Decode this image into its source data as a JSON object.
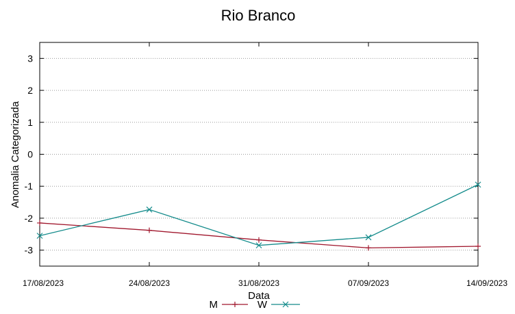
{
  "chart_data": {
    "type": "line",
    "title": "Rio Branco",
    "xlabel": "Data",
    "ylabel": "Anomalia Categorizada",
    "categories": [
      "17/08/2023",
      "24/08/2023",
      "31/08/2023",
      "07/09/2023",
      "14/09/2023"
    ],
    "yticks": [
      "3",
      "2",
      "1",
      "0",
      "-1",
      "-2",
      "-3"
    ],
    "ylim": [
      -3.5,
      3.5
    ],
    "grid": true,
    "legend_position": "bottom",
    "series": [
      {
        "name": "M",
        "values": [
          -2.15,
          -2.38,
          -2.68,
          -2.93,
          -2.88
        ],
        "color": "#a0162c",
        "marker": "plus"
      },
      {
        "name": "W",
        "values": [
          -2.55,
          -1.73,
          -2.85,
          -2.6,
          -0.95
        ],
        "color": "#138b8b",
        "marker": "cross"
      }
    ]
  }
}
